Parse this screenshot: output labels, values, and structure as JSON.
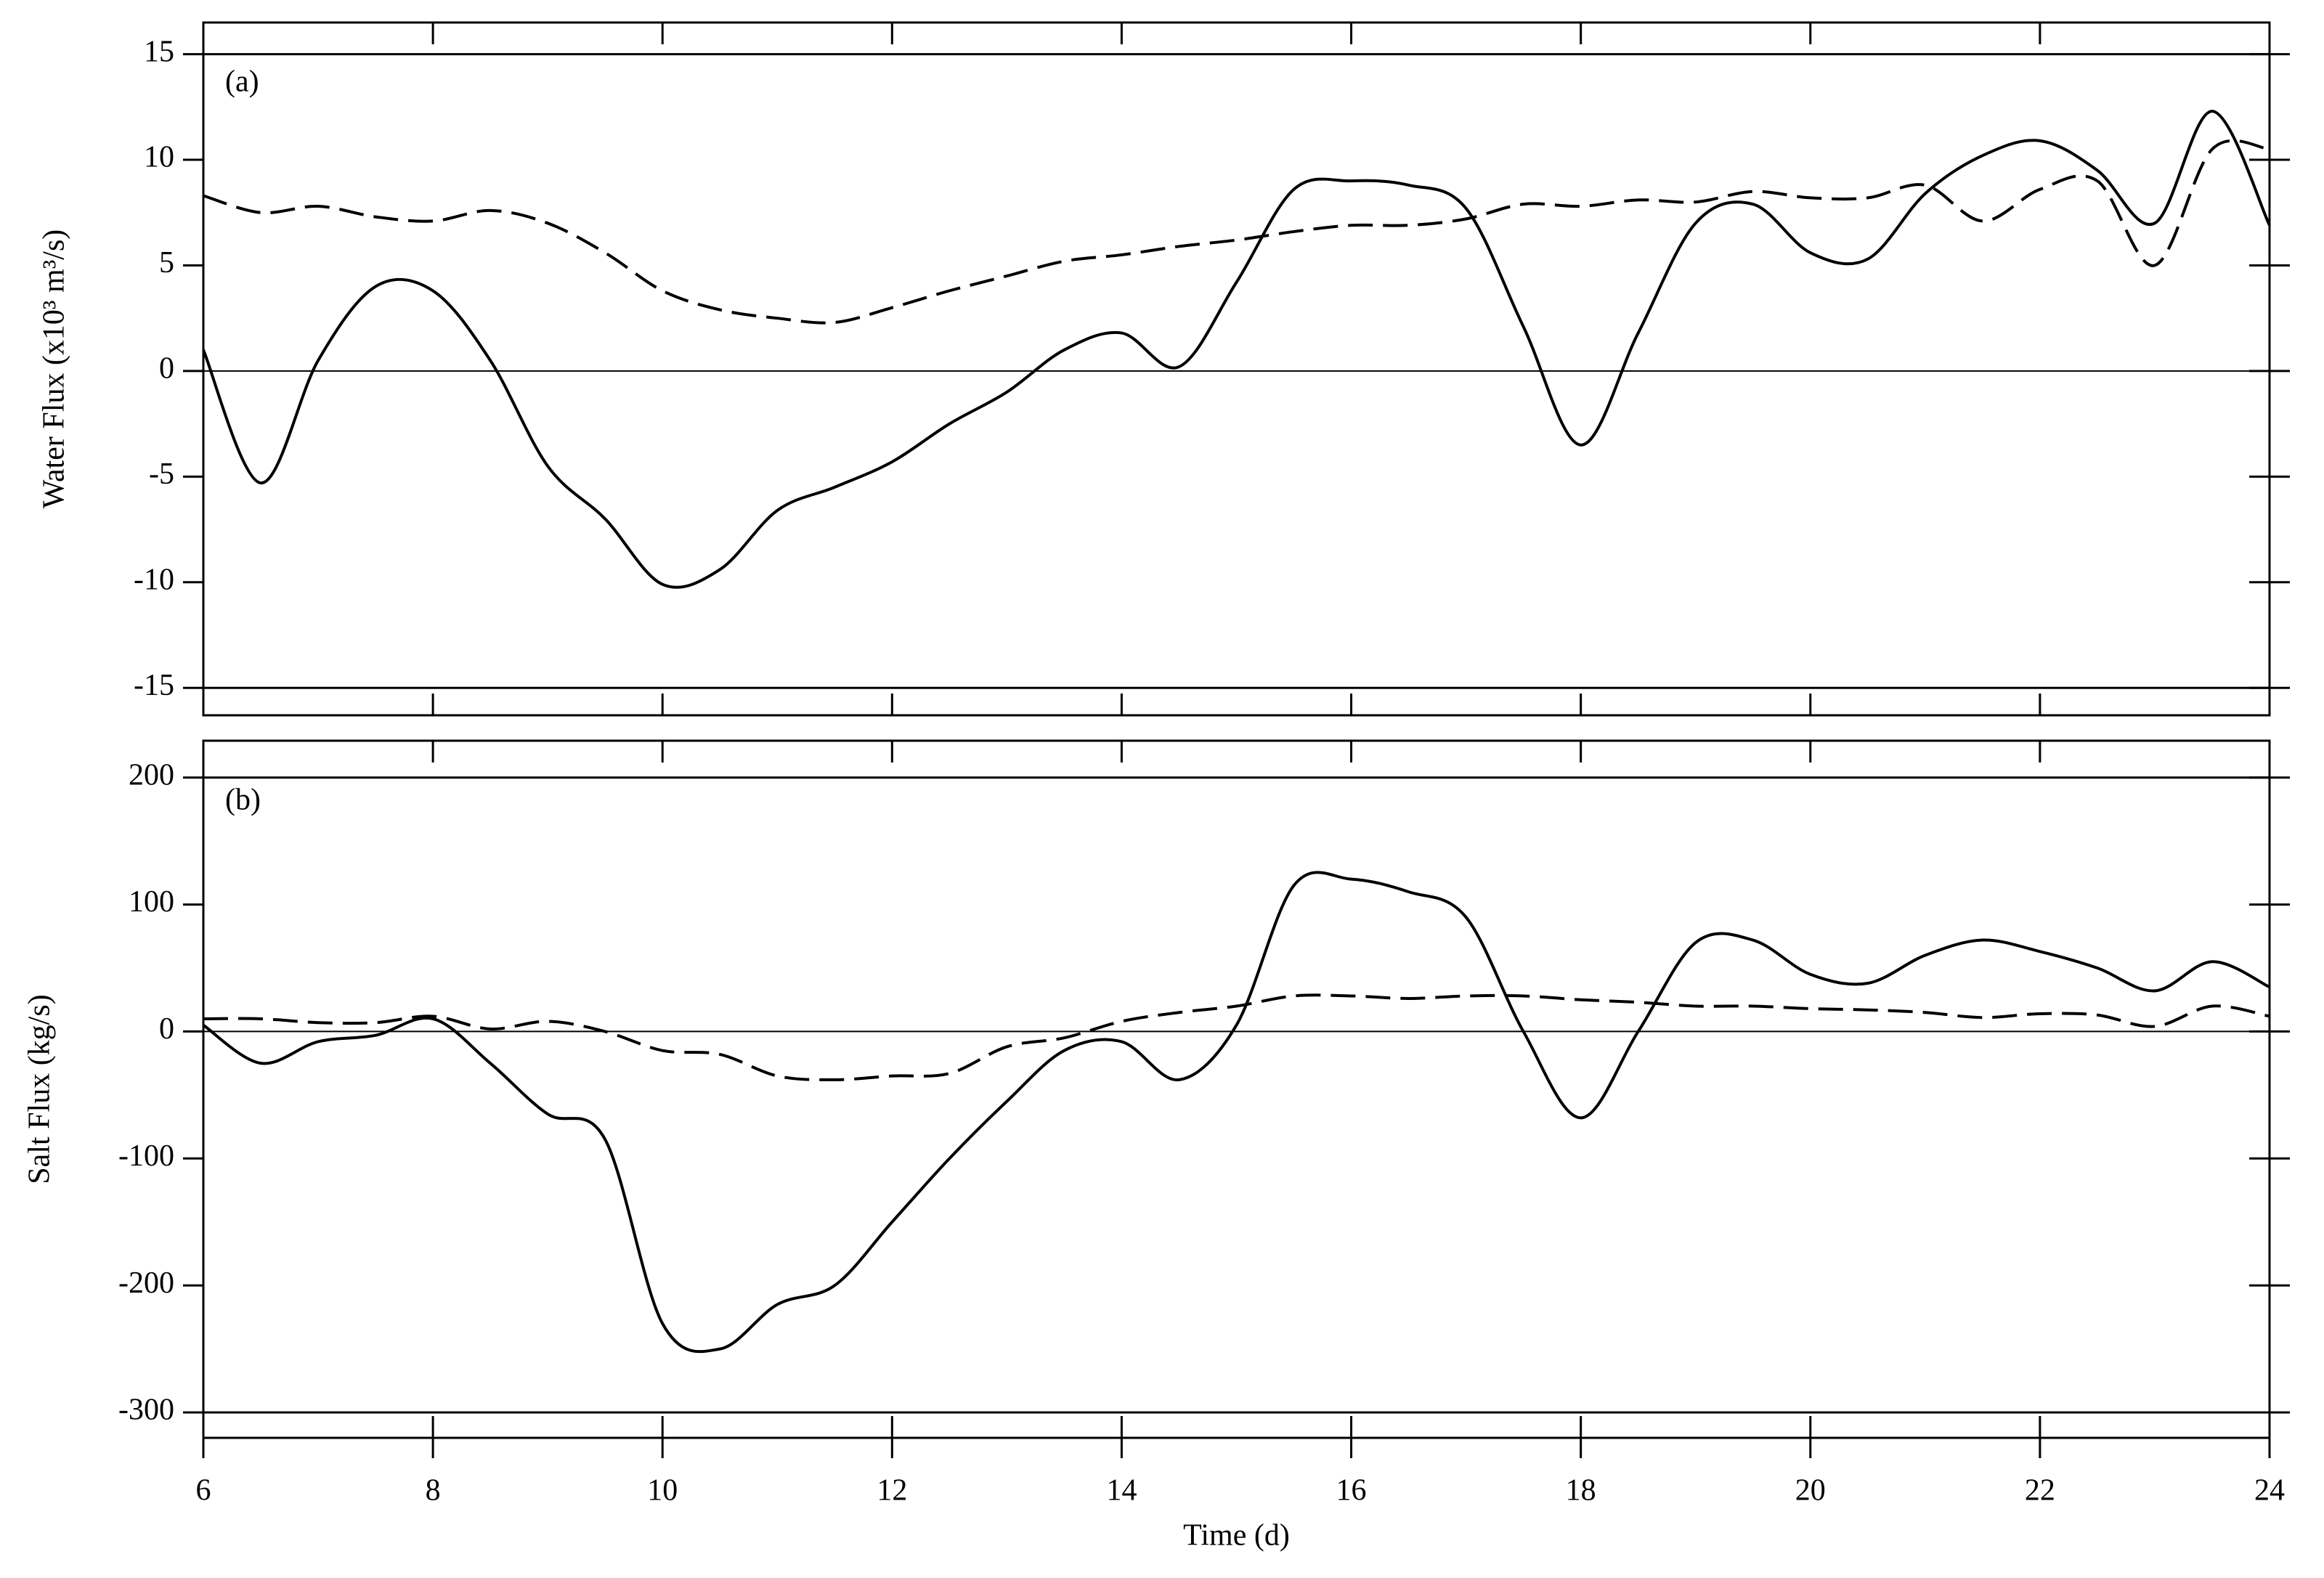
{
  "chart_data": [
    {
      "type": "line",
      "annotation": "(a)",
      "ylabel": "Water Flux (x10³ m³/s)",
      "x": [
        6,
        6.5,
        7,
        7.5,
        8,
        8.5,
        9,
        9.5,
        10,
        10.5,
        11,
        11.5,
        12,
        12.5,
        13,
        13.5,
        14,
        14.5,
        15,
        15.5,
        16,
        16.5,
        17,
        17.5,
        18,
        18.5,
        19,
        19.5,
        20,
        20.5,
        21,
        21.5,
        22,
        22.5,
        23,
        23.5,
        24
      ],
      "series": [
        {
          "color": "#000000",
          "dash": false,
          "values": [
            1,
            -5.3,
            0.5,
            4.0,
            3.8,
            0.5,
            -4.5,
            -7,
            -10.1,
            -9.4,
            -6.6,
            -5.5,
            -4.3,
            -2.5,
            -1,
            1.0,
            1.8,
            0.2,
            4.2,
            8.6,
            9.0,
            8.8,
            7.7,
            2.1,
            -3.5,
            1.8,
            7.0,
            7.9,
            5.6,
            5.3,
            8.4,
            10.2,
            10.9,
            9.5,
            7.0,
            12.3,
            6.9
          ]
        },
        {
          "color": "#000000",
          "dash": true,
          "values": [
            8.3,
            7.5,
            7.8,
            7.3,
            7.1,
            7.6,
            7.0,
            5.6,
            3.8,
            2.9,
            2.5,
            2.3,
            3.0,
            3.8,
            4.5,
            5.2,
            5.5,
            5.9,
            6.2,
            6.6,
            6.9,
            6.9,
            7.2,
            7.9,
            7.8,
            8.1,
            8.0,
            8.5,
            8.2,
            8.2,
            8.8,
            7.1,
            8.6,
            9.0,
            5.0,
            10.5,
            10.5
          ]
        }
      ],
      "xlim": [
        6,
        24
      ],
      "xticks": [
        6,
        8,
        10,
        12,
        14,
        16,
        18,
        20,
        22,
        24
      ],
      "show_xtick_labels": false,
      "ylim": [
        -16.3,
        16.5
      ],
      "yticks": [
        -15,
        -10,
        -5,
        0,
        5,
        10,
        15
      ],
      "zero_line": true
    },
    {
      "type": "line",
      "annotation": "(b)",
      "ylabel": "Salt Flux (kg/s)",
      "xlabel": "Time (d)",
      "x": [
        6,
        6.5,
        7,
        7.5,
        8,
        8.5,
        9,
        9.5,
        10,
        10.5,
        11,
        11.5,
        12,
        12.5,
        13,
        13.5,
        14,
        14.5,
        15,
        15.5,
        16,
        16.5,
        17,
        17.5,
        18,
        18.5,
        19,
        19.5,
        20,
        20.5,
        21,
        21.5,
        22,
        22.5,
        23,
        23.5,
        24
      ],
      "series": [
        {
          "color": "#000000",
          "dash": false,
          "values": [
            5,
            -25,
            -8,
            -3,
            10,
            -25,
            -65,
            -85,
            -230,
            -250,
            -215,
            -200,
            -150,
            -100,
            -55,
            -15,
            -8,
            -38,
            5,
            115,
            120,
            110,
            90,
            0,
            -68,
            0,
            70,
            72,
            45,
            38,
            60,
            72,
            63,
            50,
            32,
            55,
            35
          ]
        },
        {
          "color": "#000000",
          "dash": true,
          "values": [
            10,
            10,
            7,
            7,
            12,
            2,
            8,
            0,
            -15,
            -18,
            -35,
            -38,
            -35,
            -33,
            -12,
            -5,
            8,
            15,
            20,
            28,
            28,
            26,
            28,
            28,
            25,
            23,
            20,
            20,
            18,
            17,
            15,
            11,
            14,
            13,
            4,
            20,
            12
          ]
        }
      ],
      "xlim": [
        6,
        24
      ],
      "xticks": [
        6,
        8,
        10,
        12,
        14,
        16,
        18,
        20,
        22,
        24
      ],
      "show_xtick_labels": true,
      "ylim": [
        -320,
        229
      ],
      "yticks": [
        -300,
        -200,
        -100,
        0,
        100,
        200
      ],
      "zero_line": true
    }
  ]
}
